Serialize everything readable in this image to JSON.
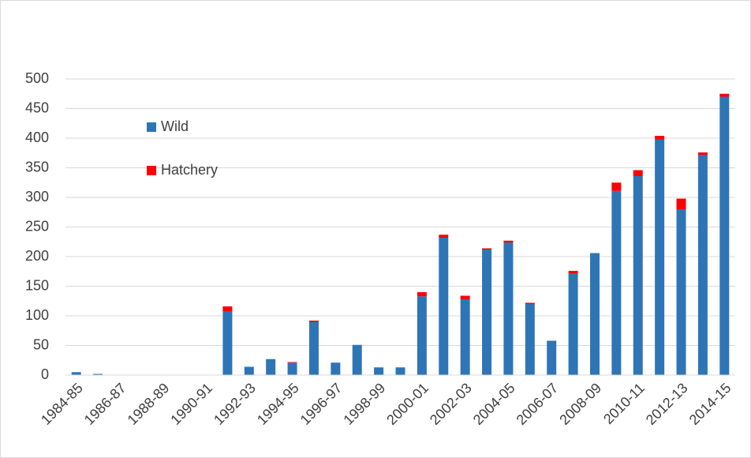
{
  "chart_data": {
    "type": "stacked-bar",
    "categories": [
      "1984-85",
      null,
      "1986-87",
      null,
      "1988-89",
      null,
      "1990-91",
      null,
      "1992-93",
      null,
      "1994-95",
      null,
      "1996-97",
      null,
      "1998-99",
      null,
      "2000-01",
      null,
      "2002-03",
      null,
      "2004-05",
      null,
      "2006-07",
      null,
      "2008-09",
      null,
      "2010-11",
      null,
      "2012-13",
      null,
      "2014-15"
    ],
    "series": [
      {
        "name": "Wild",
        "color": "#2e75b6",
        "values": [
          5,
          2,
          0,
          0,
          0,
          0,
          0,
          107,
          14,
          27,
          21,
          90,
          21,
          51,
          13,
          13,
          133,
          232,
          128,
          212,
          224,
          120,
          58,
          171,
          206,
          311,
          336,
          398,
          280,
          372,
          470
        ]
      },
      {
        "name": "Hatchery",
        "color": "#ff0000",
        "values": [
          0,
          0,
          0,
          0,
          0,
          0,
          0,
          9,
          0,
          0,
          1,
          2,
          0,
          0,
          0,
          0,
          7,
          5,
          6,
          2,
          3,
          2,
          0,
          5,
          0,
          14,
          10,
          6,
          18,
          4,
          5
        ]
      }
    ],
    "ylim": [
      0,
      500
    ],
    "yticks": [
      0,
      50,
      100,
      150,
      200,
      250,
      300,
      350,
      400,
      450,
      500
    ],
    "grid": true,
    "legend": "upper-left"
  }
}
